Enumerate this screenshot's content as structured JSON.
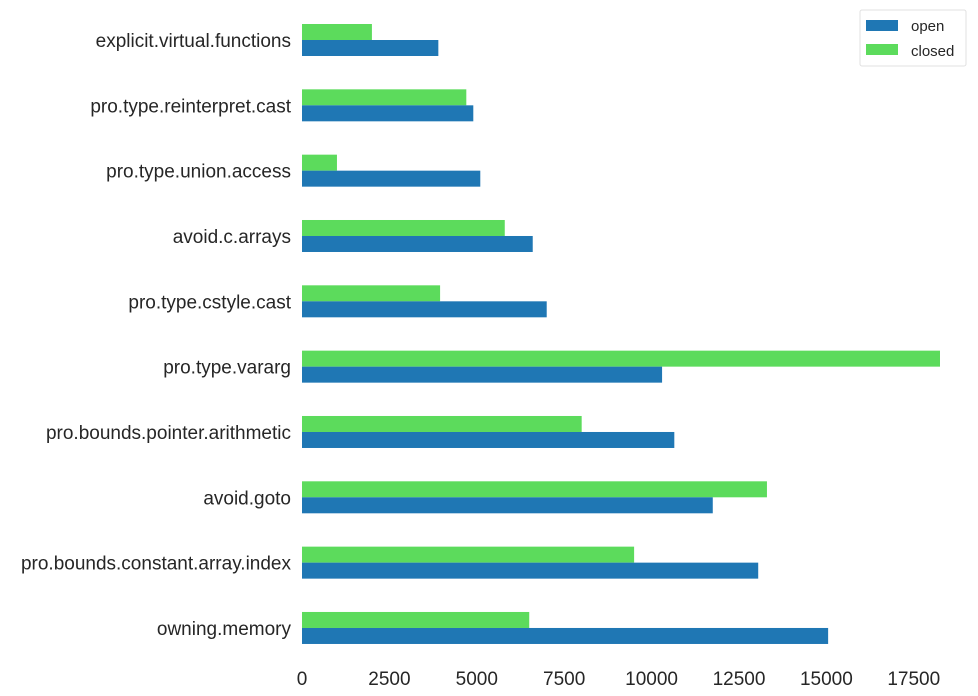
{
  "chart_data": {
    "type": "bar",
    "orientation": "horizontal",
    "categories": [
      "explicit.virtual.functions",
      "pro.type.reinterpret.cast",
      "pro.type.union.access",
      "avoid.c.arrays",
      "pro.type.cstyle.cast",
      "pro.type.vararg",
      "pro.bounds.pointer.arithmetic",
      "avoid.goto",
      "pro.bounds.constant.array.index",
      "owning.memory"
    ],
    "series": [
      {
        "name": "open",
        "color": "#1f77b4",
        "values": [
          3900,
          4900,
          5100,
          6600,
          7000,
          10300,
          10650,
          11750,
          13050,
          15050
        ]
      },
      {
        "name": "closed",
        "color": "#5cdb5c",
        "values": [
          2000,
          4700,
          1000,
          5800,
          3950,
          18250,
          8000,
          13300,
          9500,
          6500
        ]
      }
    ],
    "xticks": [
      0,
      2500,
      5000,
      7500,
      10000,
      12500,
      15000,
      17500
    ],
    "xtick_labels": [
      "0",
      "2500",
      "5000",
      "7500",
      "10000",
      "12500",
      "15000",
      "17500"
    ],
    "xlim": [
      0,
      18250
    ],
    "title": "",
    "xlabel": "",
    "ylabel": "",
    "grid": false,
    "legend_position": "top-right"
  }
}
